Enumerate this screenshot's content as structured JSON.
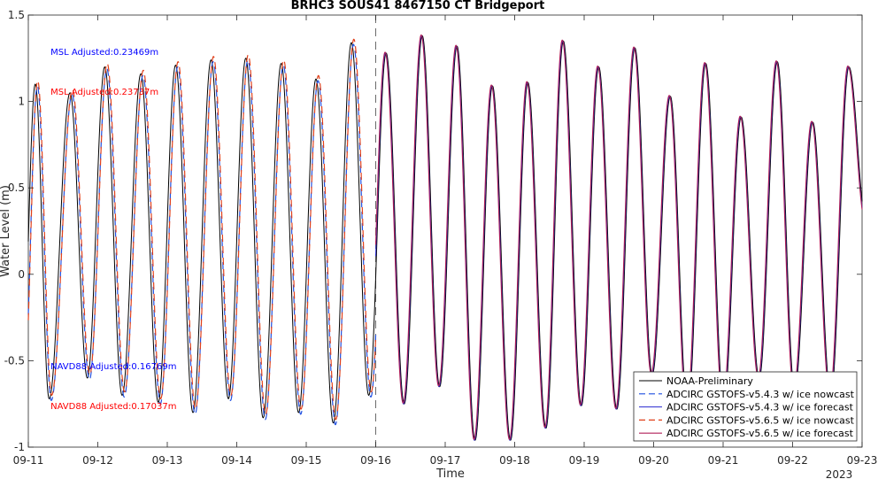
{
  "chart_data": {
    "type": "line",
    "title": "BRHC3 SOUS41 8467150 CT Bridgeport",
    "xlabel": "Time",
    "ylabel": "Water Level (m)",
    "x_ticks": [
      "09-11",
      "09-12",
      "09-13",
      "09-14",
      "09-15",
      "09-16",
      "09-17",
      "09-18",
      "09-19",
      "09-20",
      "09-21",
      "09-22",
      "09-23"
    ],
    "x_secondary_label": "2023",
    "xlim_days": [
      11,
      23
    ],
    "ylim": [
      -1,
      1.5
    ],
    "y_ticks": [
      -1,
      -0.5,
      0,
      0.5,
      1,
      1.5
    ],
    "y_tick_labels": [
      "-1",
      "-0.5",
      "0",
      "0.5",
      "1",
      "1.5"
    ],
    "grid": false,
    "legend_position": "bottom-right",
    "vline_day": 16,
    "annotations": [
      {
        "text": "MSL Adjusted:0.23469m",
        "color": "#0000ff",
        "x_day": 11.32,
        "y": 1.27
      },
      {
        "text": "MSL Adjusted:0.23737m",
        "color": "#ff0000",
        "x_day": 11.32,
        "y": 1.04
      },
      {
        "text": "NAVD88 Adjusted:0.16769m",
        "color": "#0000ff",
        "x_day": 11.32,
        "y": -0.55
      },
      {
        "text": "NAVD88 Adjusted:0.17037m",
        "color": "#ff0000",
        "x_day": 11.32,
        "y": -0.78
      }
    ],
    "tide_extrema_day": [
      11.1,
      11.3,
      11.6,
      11.85,
      12.1,
      12.35,
      12.62,
      12.87,
      13.12,
      13.37,
      13.63,
      13.88,
      14.13,
      14.38,
      14.64,
      14.89,
      15.14,
      15.39,
      15.65,
      15.9,
      16.15,
      16.41,
      16.67,
      16.92,
      17.17,
      17.43,
      17.68,
      17.94,
      18.19,
      18.45,
      18.7,
      18.96,
      19.21,
      19.47,
      19.73,
      19.98,
      20.24,
      20.49,
      20.75,
      21.01,
      21.26,
      21.52,
      21.78,
      22.03,
      22.29,
      22.55,
      22.81,
      23.06
    ],
    "tide_extrema_level": [
      1.1,
      -0.72,
      1.05,
      -0.6,
      1.2,
      -0.7,
      1.16,
      -0.74,
      1.21,
      -0.8,
      1.24,
      -0.72,
      1.25,
      -0.83,
      1.22,
      -0.8,
      1.13,
      -0.86,
      1.34,
      -0.7,
      1.28,
      -0.75,
      1.38,
      -0.65,
      1.32,
      -0.96,
      1.09,
      -0.96,
      1.11,
      -0.89,
      1.35,
      -0.76,
      1.2,
      -0.78,
      1.31,
      -0.58,
      1.03,
      -0.79,
      1.22,
      -0.75,
      0.91,
      -0.6,
      1.23,
      -0.67,
      0.88,
      -0.7,
      1.2,
      0.3
    ],
    "series": [
      {
        "name": "NOAA-Preliminary",
        "color": "#000000",
        "dash": "",
        "stroke_width": 1,
        "offset": 0,
        "phase_shift": 0,
        "nowcast": true
      },
      {
        "name": "ADCIRC GSTOFS-v5.4.3 w/ ice nowcast",
        "color": "#1f4fe0",
        "dash": "8,5",
        "stroke_width": 1.2,
        "offset": -0.01,
        "phase_shift": -0.03,
        "nowcast": true
      },
      {
        "name": "ADCIRC GSTOFS-v5.4.3 w/ ice forecast",
        "color": "#2a2ad0",
        "dash": "",
        "stroke_width": 1,
        "offset": 0,
        "phase_shift": 0.01,
        "nowcast": false
      },
      {
        "name": "ADCIRC GSTOFS-v5.6.5 w/ ice nowcast",
        "color": "#e0401a",
        "dash": "8,5",
        "stroke_width": 1.2,
        "offset": 0.02,
        "phase_shift": -0.035,
        "nowcast": true
      },
      {
        "name": "ADCIRC GSTOFS-v5.6.5 w/ ice forecast",
        "color": "#b0205a",
        "dash": "",
        "stroke_width": 1.1,
        "offset": 0.005,
        "phase_shift": 0.015,
        "nowcast": false
      }
    ]
  }
}
